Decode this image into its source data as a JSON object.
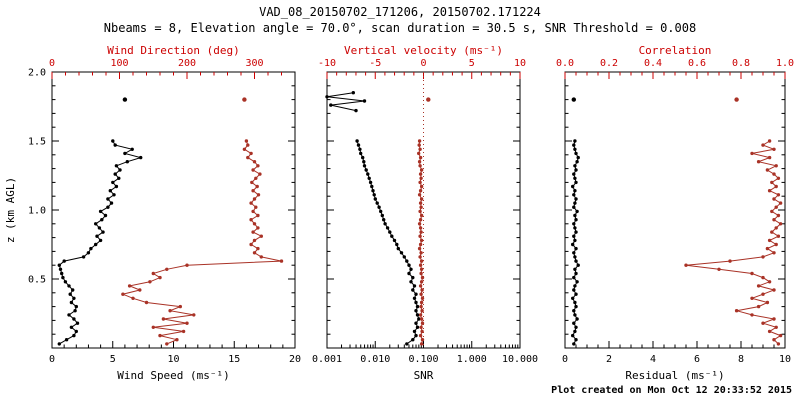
{
  "header": {
    "title": "VAD_08_20150702_171206, 20150702.171224",
    "subtitle": "Nbeams = 8, Elevation angle = 70.0°, scan duration = 30.5 s, SNR Threshold = 0.008"
  },
  "footer": {
    "created": "Plot created on Mon Oct 12 20:33:52 2015"
  },
  "colors": {
    "black": "#000000",
    "series_red": "#a93226",
    "axis_red": "#cc0000",
    "background": "#ffffff"
  },
  "y_axis": {
    "label": "z (km AGL)",
    "range": [
      0,
      2
    ],
    "major_ticks": [
      0.5,
      1.0,
      1.5,
      2.0
    ],
    "tick_labels": [
      "0.5",
      "1.0",
      "1.5",
      "2.0"
    ],
    "minor_step": 0.1
  },
  "z_levels": [
    0.03,
    0.06,
    0.09,
    0.12,
    0.15,
    0.18,
    0.21,
    0.24,
    0.27,
    0.3,
    0.33,
    0.36,
    0.39,
    0.42,
    0.45,
    0.48,
    0.51,
    0.54,
    0.57,
    0.6,
    0.63,
    0.66,
    0.69,
    0.72,
    0.75,
    0.78,
    0.81,
    0.84,
    0.87,
    0.9,
    0.93,
    0.96,
    0.99,
    1.02,
    1.05,
    1.08,
    1.11,
    1.14,
    1.17,
    1.2,
    1.23,
    1.26,
    1.29,
    1.32,
    1.35,
    1.38,
    1.41,
    1.44,
    1.47,
    1.5
  ],
  "chart_data": [
    {
      "type": "line",
      "name": "wind-panel",
      "bottom_axis": {
        "label": "Wind Speed (ms⁻¹)",
        "scale": "linear",
        "range": [
          0,
          20
        ],
        "ticks": [
          0,
          5,
          10,
          15,
          20
        ],
        "tick_labels": [
          "0",
          "5",
          "10",
          "15",
          "20"
        ],
        "minor_step": 1
      },
      "top_axis": {
        "label": "Wind Direction (deg)",
        "scale": "linear",
        "range": [
          0,
          360
        ],
        "ticks": [
          0,
          100,
          200,
          300
        ],
        "tick_labels": [
          "0",
          "100",
          "200",
          "300"
        ],
        "minor_step": 20
      },
      "series": [
        {
          "name": "wind-speed",
          "axis": "bottom",
          "color": "black",
          "values": [
            0.6,
            1.2,
            1.8,
            2.0,
            1.6,
            2.1,
            1.8,
            1.4,
            1.9,
            2.0,
            1.6,
            1.8,
            1.5,
            1.7,
            1.4,
            1.1,
            0.9,
            0.8,
            0.7,
            0.6,
            1.0,
            2.6,
            3.0,
            3.2,
            3.6,
            4.0,
            3.7,
            4.2,
            3.9,
            3.6,
            4.1,
            4.4,
            4.0,
            4.6,
            4.9,
            4.6,
            5.1,
            4.8,
            5.3,
            5.0,
            5.5,
            5.2,
            5.6,
            5.3,
            6.2,
            7.3,
            6.0,
            6.6,
            5.2,
            5.0
          ]
        },
        {
          "name": "wind-direction",
          "axis": "top",
          "color": "red",
          "values": [
            170,
            185,
            160,
            195,
            150,
            200,
            165,
            210,
            175,
            190,
            140,
            120,
            105,
            130,
            115,
            145,
            160,
            150,
            170,
            200,
            340,
            310,
            300,
            305,
            295,
            300,
            310,
            298,
            305,
            300,
            295,
            305,
            298,
            302,
            295,
            300,
            306,
            298,
            304,
            296,
            302,
            308,
            298,
            305,
            300,
            290,
            295,
            285,
            290,
            288
          ]
        }
      ],
      "isolated_points": [
        {
          "series": "wind-speed",
          "axis": "bottom",
          "color": "black",
          "z": 1.8,
          "value": 6.0
        },
        {
          "series": "wind-direction",
          "axis": "top",
          "color": "red",
          "z": 1.8,
          "value": 285
        }
      ]
    },
    {
      "type": "line",
      "name": "snr-panel",
      "bottom_axis": {
        "label": "SNR",
        "scale": "log",
        "range": [
          0.001,
          10
        ],
        "ticks": [
          0.001,
          0.01,
          0.1,
          1,
          10
        ],
        "tick_labels": [
          "0.001",
          "0.010",
          "0.100",
          "1.000",
          "10.000"
        ]
      },
      "top_axis": {
        "label": "Vertical velocity (ms⁻¹)",
        "scale": "linear",
        "range": [
          -10,
          10
        ],
        "ticks": [
          -10,
          -5,
          0,
          5,
          10
        ],
        "tick_labels": [
          "-10",
          "-5",
          "0",
          "5",
          "10"
        ],
        "minor_step": 1
      },
      "refline": {
        "axis": "top",
        "value": 0,
        "style": "dotted"
      },
      "series": [
        {
          "name": "snr",
          "axis": "bottom",
          "color": "black",
          "values": [
            0.045,
            0.06,
            0.07,
            0.065,
            0.075,
            0.07,
            0.08,
            0.075,
            0.07,
            0.075,
            0.07,
            0.065,
            0.07,
            0.06,
            0.065,
            0.055,
            0.06,
            0.05,
            0.055,
            0.05,
            0.045,
            0.04,
            0.035,
            0.03,
            0.028,
            0.025,
            0.022,
            0.02,
            0.018,
            0.016,
            0.015,
            0.014,
            0.013,
            0.012,
            0.011,
            0.01,
            0.0095,
            0.009,
            0.0085,
            0.008,
            0.0075,
            0.007,
            0.0065,
            0.006,
            0.0058,
            0.0055,
            0.005,
            0.0048,
            0.0045,
            0.0042
          ]
        },
        {
          "name": "snr-upper-cluster",
          "axis": "bottom",
          "color": "black",
          "z": [
            1.72,
            1.76,
            1.79,
            1.82,
            1.85
          ],
          "values": [
            0.004,
            0.0012,
            0.006,
            0.001,
            0.0035
          ]
        },
        {
          "name": "vertical-velocity",
          "axis": "top",
          "color": "red",
          "values": [
            -0.2,
            -0.1,
            -0.3,
            -0.15,
            -0.25,
            -0.1,
            -0.2,
            -0.3,
            -0.15,
            -0.25,
            -0.2,
            -0.1,
            -0.25,
            -0.15,
            -0.3,
            -0.2,
            -0.1,
            -0.25,
            -0.2,
            -0.3,
            -0.2,
            -0.35,
            -0.25,
            -0.4,
            -0.3,
            -0.2,
            -0.35,
            -0.25,
            -0.3,
            -0.4,
            -0.3,
            -0.2,
            -0.35,
            -0.25,
            -0.3,
            -0.2,
            -0.4,
            -0.3,
            -0.2,
            -0.35,
            -0.25,
            -0.3,
            -0.2,
            -0.35,
            -0.4,
            -0.3,
            -0.5,
            -0.35,
            -0.45,
            -0.4
          ]
        }
      ],
      "isolated_points": [
        {
          "series": "vertical-velocity",
          "axis": "top",
          "color": "red",
          "z": 1.8,
          "value": 0.5
        }
      ]
    },
    {
      "type": "line",
      "name": "residual-panel",
      "bottom_axis": {
        "label": "Residual (ms⁻¹)",
        "scale": "linear",
        "range": [
          0,
          10
        ],
        "ticks": [
          0,
          2,
          4,
          6,
          8,
          10
        ],
        "tick_labels": [
          "0",
          "2",
          "4",
          "6",
          "8",
          "10"
        ],
        "minor_step": 0.5
      },
      "top_axis": {
        "label": "Correlation",
        "scale": "linear",
        "range": [
          0,
          1
        ],
        "ticks": [
          0,
          0.2,
          0.4,
          0.6,
          0.8,
          1.0
        ],
        "tick_labels": [
          "0.0",
          "0.2",
          "0.4",
          "0.6",
          "0.8",
          "1.0"
        ],
        "minor_step": 0.05
      },
      "series": [
        {
          "name": "residual",
          "axis": "bottom",
          "color": "black",
          "values": [
            0.4,
            0.5,
            0.35,
            0.45,
            0.5,
            0.4,
            0.55,
            0.45,
            0.4,
            0.5,
            0.45,
            0.35,
            0.5,
            0.4,
            0.45,
            0.55,
            0.4,
            0.5,
            0.45,
            0.6,
            0.5,
            0.45,
            0.4,
            0.5,
            0.35,
            0.45,
            0.4,
            0.5,
            0.45,
            0.4,
            0.5,
            0.45,
            0.55,
            0.4,
            0.45,
            0.5,
            0.4,
            0.45,
            0.35,
            0.5,
            0.45,
            0.4,
            0.5,
            0.45,
            0.55,
            0.6,
            0.5,
            0.45,
            0.4,
            0.45
          ]
        },
        {
          "name": "correlation",
          "axis": "top",
          "color": "red",
          "values": [
            0.97,
            0.95,
            0.98,
            0.93,
            0.96,
            0.9,
            0.95,
            0.85,
            0.78,
            0.88,
            0.92,
            0.85,
            0.9,
            0.95,
            0.88,
            0.93,
            0.9,
            0.85,
            0.7,
            0.55,
            0.75,
            0.9,
            0.95,
            0.92,
            0.96,
            0.93,
            0.97,
            0.94,
            0.96,
            0.98,
            0.95,
            0.97,
            0.94,
            0.96,
            0.98,
            0.95,
            0.97,
            0.93,
            0.96,
            0.94,
            0.97,
            0.95,
            0.92,
            0.96,
            0.88,
            0.93,
            0.85,
            0.95,
            0.9,
            0.93
          ]
        }
      ],
      "isolated_points": [
        {
          "series": "residual",
          "axis": "bottom",
          "color": "black",
          "z": 1.8,
          "value": 0.4
        },
        {
          "series": "correlation",
          "axis": "top",
          "color": "red",
          "z": 1.8,
          "value": 0.78
        }
      ]
    }
  ]
}
